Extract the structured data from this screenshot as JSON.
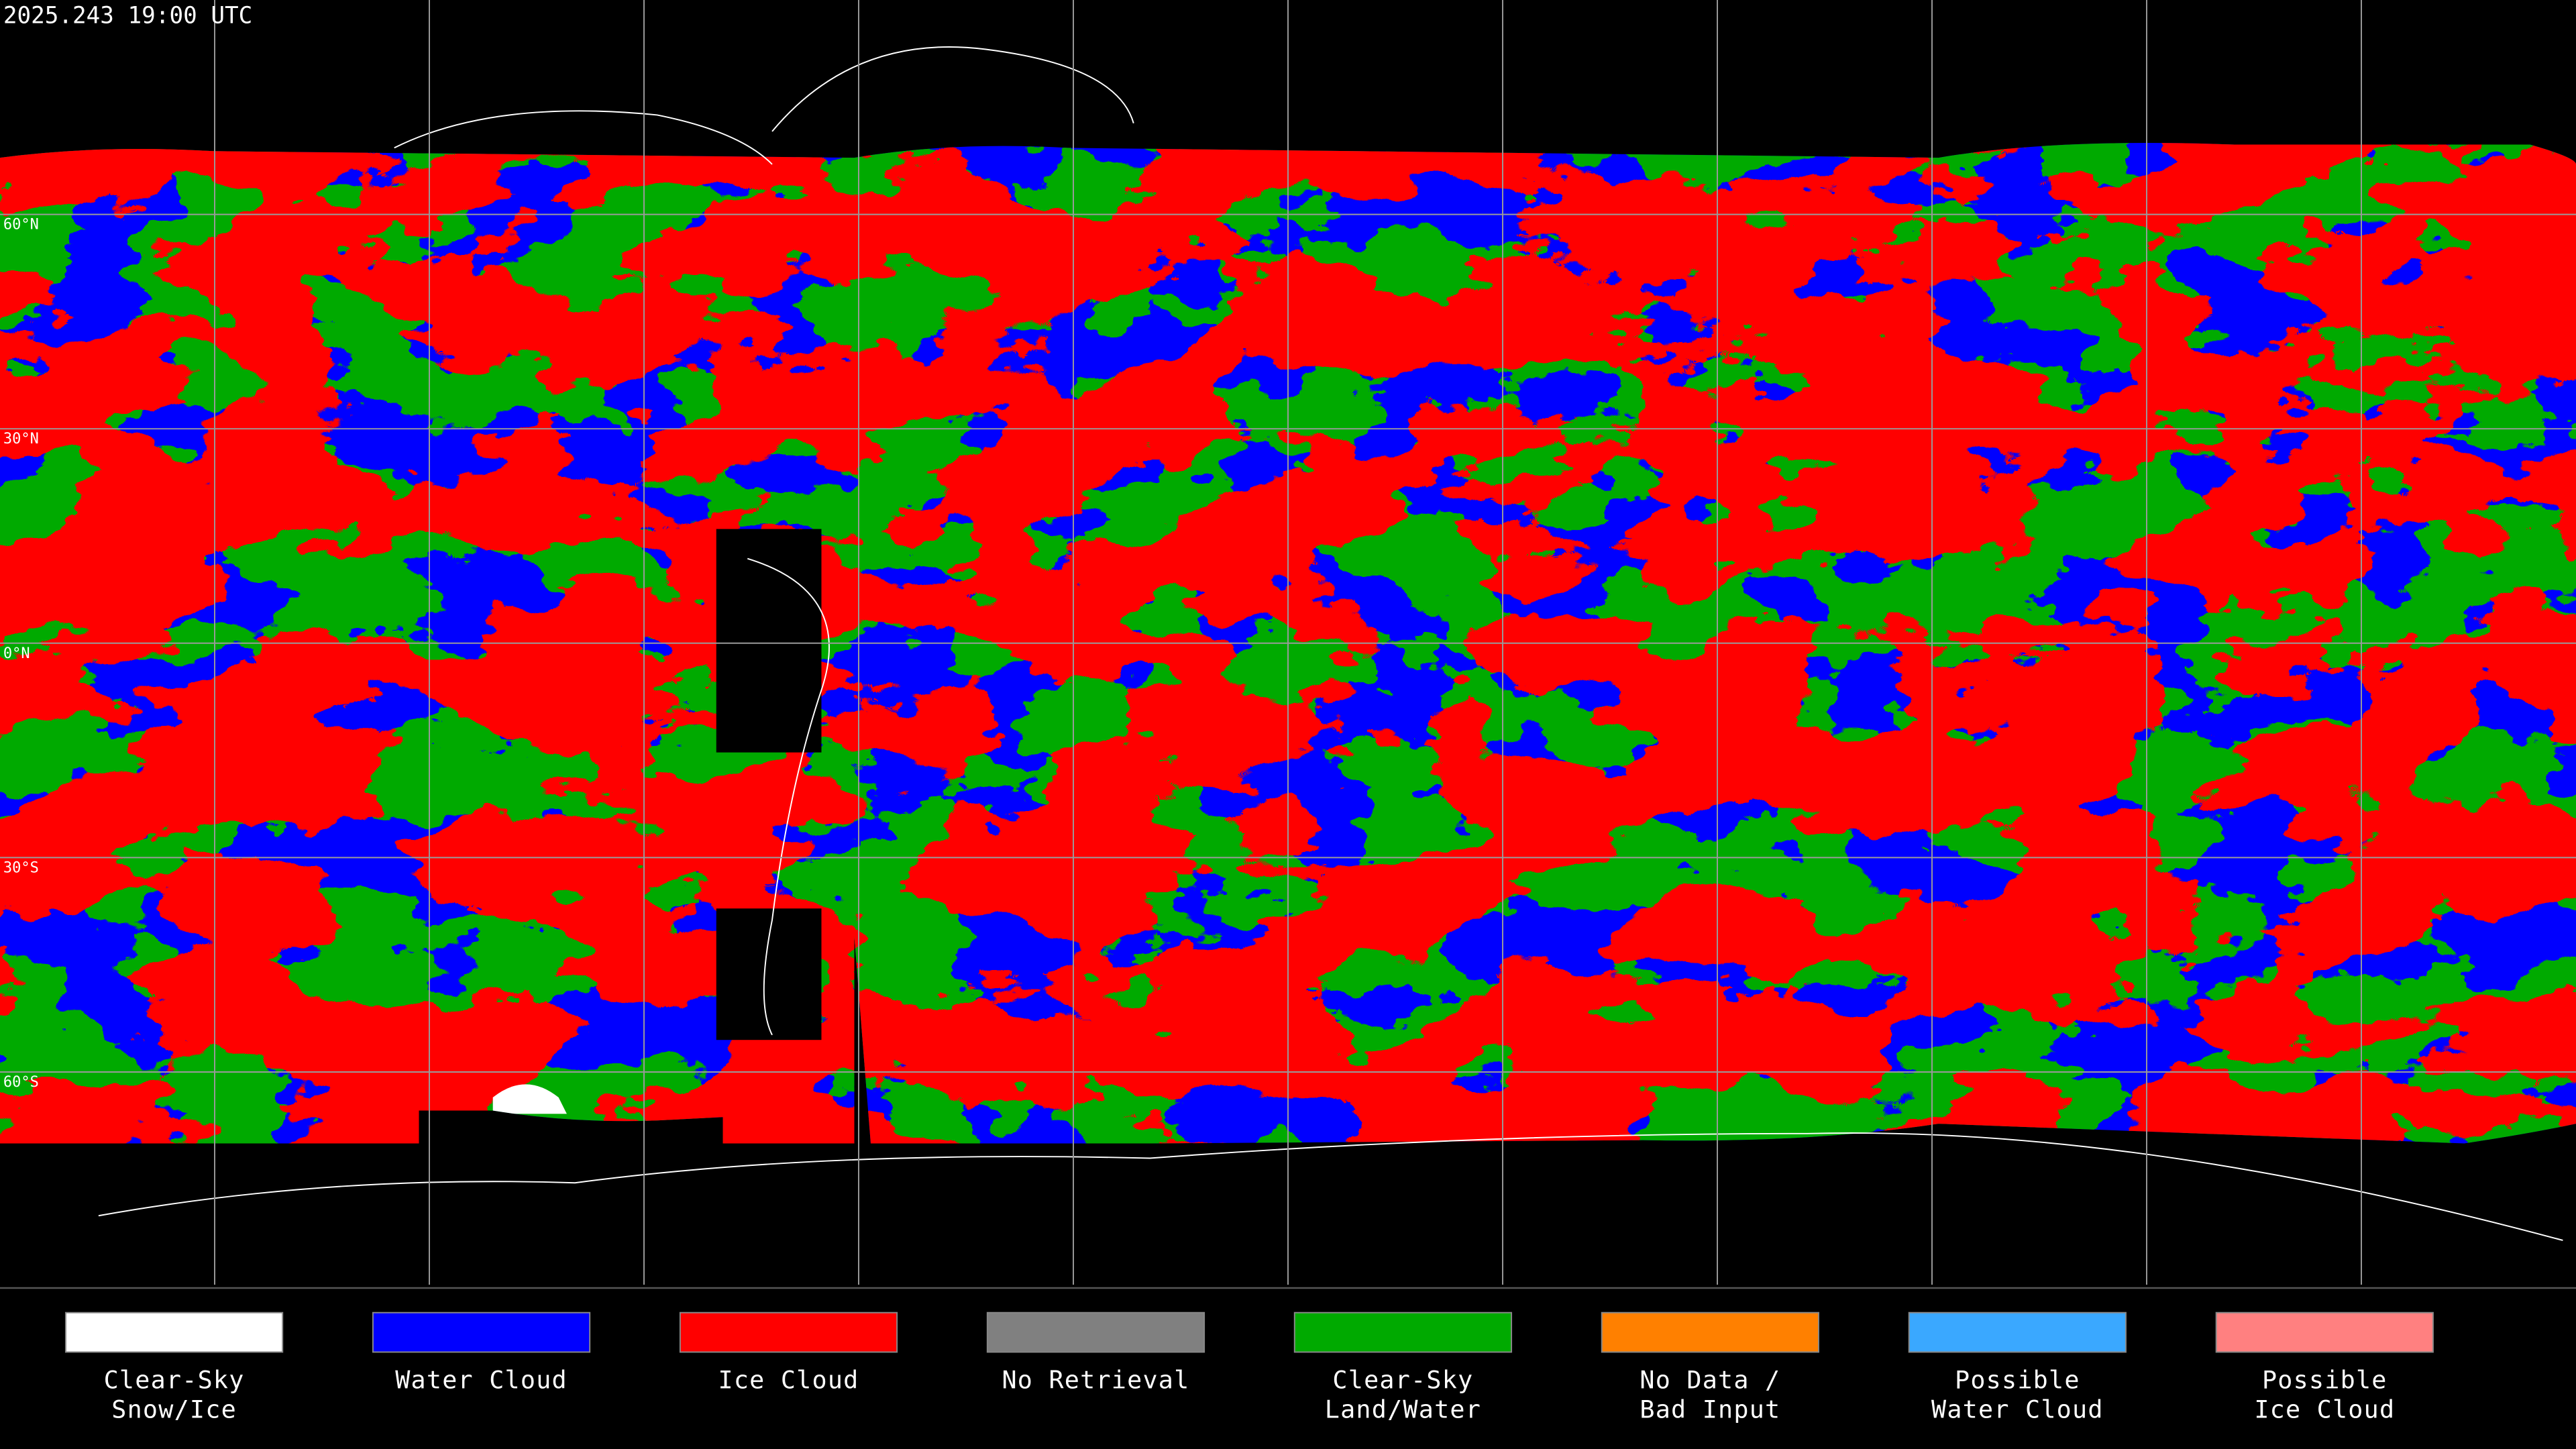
{
  "header": {
    "timestamp": "2025.243 19:00 UTC"
  },
  "map": {
    "lat_labels": [
      "60°N",
      "30°N",
      "0°N",
      "30°S",
      "60°S"
    ]
  },
  "legend": {
    "items": [
      {
        "lines": [
          "Clear-Sky",
          "Snow/Ice"
        ],
        "color": "#ffffff"
      },
      {
        "lines": [
          "Water Cloud"
        ],
        "color": "#0000ff"
      },
      {
        "lines": [
          "Ice Cloud"
        ],
        "color": "#ff0000"
      },
      {
        "lines": [
          "No Retrieval"
        ],
        "color": "#808080"
      },
      {
        "lines": [
          "Clear-Sky",
          "Land/Water"
        ],
        "color": "#00aa00"
      },
      {
        "lines": [
          "No Data /",
          "Bad Input"
        ],
        "color": "#ff8000"
      },
      {
        "lines": [
          "Possible",
          "Water Cloud"
        ],
        "color": "#3aa8ff"
      },
      {
        "lines": [
          "Possible",
          "Ice Cloud"
        ],
        "color": "#ff8080"
      }
    ]
  }
}
